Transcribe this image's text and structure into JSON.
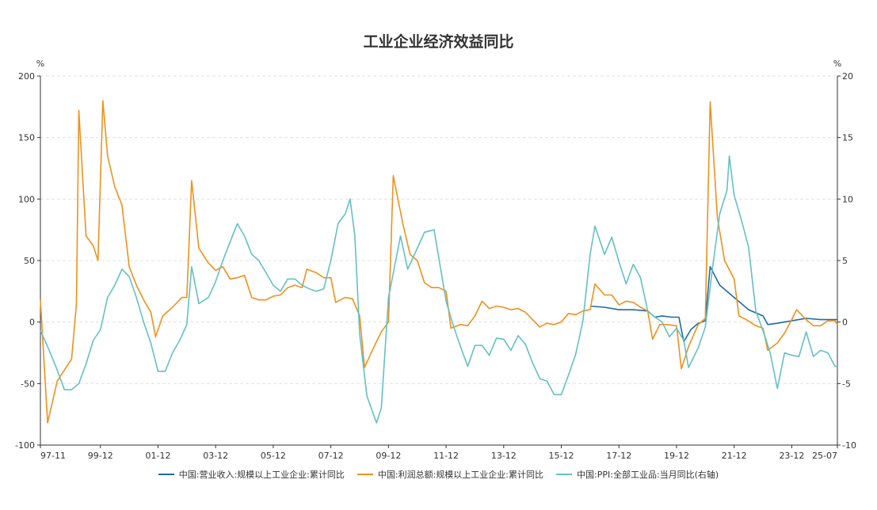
{
  "chart_data": {
    "type": "line",
    "title": "工业企业经济效益同比",
    "y_left": {
      "unit": "%",
      "lim": [
        -100,
        200
      ],
      "ticks": [
        -100,
        -50,
        0,
        50,
        100,
        150,
        200
      ]
    },
    "y_right": {
      "unit": "%",
      "lim": [
        -10,
        20
      ],
      "ticks": [
        -10,
        -5,
        0,
        5,
        10,
        15,
        20
      ]
    },
    "x_range": [
      "1997-11",
      "2025-07"
    ],
    "x_tick_labels": [
      "97-11",
      "99-12",
      "01-12",
      "03-12",
      "05-12",
      "07-12",
      "09-12",
      "11-12",
      "13-12",
      "15-12",
      "17-12",
      "19-12",
      "21-12",
      "23-12",
      "25-07"
    ],
    "grid": "horizontal-dashed",
    "legend_position": "bottom",
    "series": [
      {
        "name": "中国:营业收入:规模以上工业企业:累计同比",
        "axis": "left",
        "color": "#1f6aa5",
        "points": [
          [
            "2016-12",
            13
          ],
          [
            "2017-06",
            12
          ],
          [
            "2017-12",
            10
          ],
          [
            "2018-06",
            10
          ],
          [
            "2018-12",
            9
          ],
          [
            "2019-03",
            4
          ],
          [
            "2019-06",
            5
          ],
          [
            "2019-10",
            4
          ],
          [
            "2020-01",
            4
          ],
          [
            "2020-03",
            -16
          ],
          [
            "2020-06",
            -6
          ],
          [
            "2020-09",
            -1
          ],
          [
            "2020-12",
            1
          ],
          [
            "2021-02",
            45
          ],
          [
            "2021-06",
            30
          ],
          [
            "2021-12",
            20
          ],
          [
            "2022-06",
            10
          ],
          [
            "2022-12",
            5
          ],
          [
            "2023-02",
            -2
          ],
          [
            "2023-06",
            -1
          ],
          [
            "2023-12",
            1
          ],
          [
            "2024-06",
            3
          ],
          [
            "2024-12",
            2
          ],
          [
            "2025-07",
            2
          ]
        ]
      },
      {
        "name": "中国:利润总额:规模以上工业企业:累计同比",
        "axis": "left",
        "color": "#f0901e",
        "points": [
          [
            "1997-11",
            18
          ],
          [
            "1998-02",
            -82
          ],
          [
            "1998-06",
            -48
          ],
          [
            "1998-12",
            -30
          ],
          [
            "1999-02",
            15
          ],
          [
            "1999-03",
            172
          ],
          [
            "1999-06",
            70
          ],
          [
            "1999-09",
            62
          ],
          [
            "1999-11",
            50
          ],
          [
            "2000-01",
            180
          ],
          [
            "2000-03",
            135
          ],
          [
            "2000-06",
            110
          ],
          [
            "2000-09",
            95
          ],
          [
            "2000-12",
            45
          ],
          [
            "2001-03",
            30
          ],
          [
            "2001-06",
            18
          ],
          [
            "2001-09",
            8
          ],
          [
            "2001-11",
            -12
          ],
          [
            "2002-02",
            5
          ],
          [
            "2002-06",
            12
          ],
          [
            "2002-10",
            20
          ],
          [
            "2002-12",
            20
          ],
          [
            "2003-02",
            115
          ],
          [
            "2003-05",
            60
          ],
          [
            "2003-09",
            48
          ],
          [
            "2003-12",
            42
          ],
          [
            "2004-03",
            45
          ],
          [
            "2004-06",
            35
          ],
          [
            "2004-09",
            36
          ],
          [
            "2004-12",
            38
          ],
          [
            "2005-03",
            20
          ],
          [
            "2005-06",
            18
          ],
          [
            "2005-09",
            18
          ],
          [
            "2005-12",
            21
          ],
          [
            "2006-03",
            22
          ],
          [
            "2006-06",
            28
          ],
          [
            "2006-09",
            30
          ],
          [
            "2006-12",
            28
          ],
          [
            "2007-02",
            43
          ],
          [
            "2007-06",
            40
          ],
          [
            "2007-09",
            36
          ],
          [
            "2007-12",
            36
          ],
          [
            "2008-02",
            16
          ],
          [
            "2008-06",
            20
          ],
          [
            "2008-09",
            19
          ],
          [
            "2008-12",
            5
          ],
          [
            "2009-02",
            -37
          ],
          [
            "2009-06",
            -20
          ],
          [
            "2009-09",
            -8
          ],
          [
            "2009-12",
            0
          ],
          [
            "2010-02",
            119
          ],
          [
            "2010-06",
            80
          ],
          [
            "2010-09",
            55
          ],
          [
            "2010-12",
            50
          ],
          [
            "2011-03",
            32
          ],
          [
            "2011-06",
            28
          ],
          [
            "2011-09",
            28
          ],
          [
            "2011-12",
            25
          ],
          [
            "2012-02",
            -5
          ],
          [
            "2012-06",
            -2
          ],
          [
            "2012-09",
            -3
          ],
          [
            "2012-12",
            5
          ],
          [
            "2013-03",
            17
          ],
          [
            "2013-06",
            11
          ],
          [
            "2013-09",
            13
          ],
          [
            "2013-12",
            12
          ],
          [
            "2014-03",
            10
          ],
          [
            "2014-06",
            11
          ],
          [
            "2014-09",
            8
          ],
          [
            "2014-12",
            2
          ],
          [
            "2015-03",
            -4
          ],
          [
            "2015-06",
            -1
          ],
          [
            "2015-09",
            -2
          ],
          [
            "2015-12",
            0
          ],
          [
            "2016-03",
            7
          ],
          [
            "2016-06",
            6
          ],
          [
            "2016-09",
            9
          ],
          [
            "2016-12",
            10
          ],
          [
            "2017-02",
            31
          ],
          [
            "2017-06",
            22
          ],
          [
            "2017-09",
            22
          ],
          [
            "2017-12",
            14
          ],
          [
            "2018-03",
            17
          ],
          [
            "2018-06",
            16
          ],
          [
            "2018-09",
            12
          ],
          [
            "2018-12",
            9
          ],
          [
            "2019-02",
            -14
          ],
          [
            "2019-05",
            -2
          ],
          [
            "2019-08",
            -2
          ],
          [
            "2019-12",
            -3
          ],
          [
            "2020-02",
            -38
          ],
          [
            "2020-05",
            -20
          ],
          [
            "2020-09",
            -2
          ],
          [
            "2020-12",
            3
          ],
          [
            "2021-02",
            179
          ],
          [
            "2021-05",
            85
          ],
          [
            "2021-08",
            50
          ],
          [
            "2021-12",
            35
          ],
          [
            "2022-02",
            5
          ],
          [
            "2022-05",
            2
          ],
          [
            "2022-09",
            -3
          ],
          [
            "2022-12",
            -5
          ],
          [
            "2023-02",
            -23
          ],
          [
            "2023-06",
            -17
          ],
          [
            "2023-09",
            -9
          ],
          [
            "2023-12",
            2
          ],
          [
            "2024-02",
            10
          ],
          [
            "2024-06",
            2
          ],
          [
            "2024-09",
            -3
          ],
          [
            "2024-12",
            -3
          ],
          [
            "2025-03",
            1
          ],
          [
            "2025-06",
            1
          ],
          [
            "2025-07",
            -2
          ]
        ]
      },
      {
        "name": "中国:PPI:全部工业品:当月同比(右轴)",
        "axis": "right",
        "color": "#64c0c4",
        "points": [
          [
            "1997-11",
            -0.7
          ],
          [
            "1998-02",
            -2
          ],
          [
            "1998-06",
            -3.9
          ],
          [
            "1998-09",
            -5.5
          ],
          [
            "1998-12",
            -5.5
          ],
          [
            "1999-03",
            -5
          ],
          [
            "1999-06",
            -3.4
          ],
          [
            "1999-09",
            -1.5
          ],
          [
            "1999-12",
            -0.6
          ],
          [
            "2000-03",
            2
          ],
          [
            "2000-06",
            3
          ],
          [
            "2000-09",
            4.3
          ],
          [
            "2000-12",
            3.7
          ],
          [
            "2001-03",
            2
          ],
          [
            "2001-06",
            0
          ],
          [
            "2001-09",
            -1.7
          ],
          [
            "2001-12",
            -4
          ],
          [
            "2002-03",
            -4
          ],
          [
            "2002-06",
            -2.5
          ],
          [
            "2002-09",
            -1.5
          ],
          [
            "2002-12",
            -0.2
          ],
          [
            "2003-02",
            4.5
          ],
          [
            "2003-05",
            1.5
          ],
          [
            "2003-09",
            2
          ],
          [
            "2003-12",
            3.3
          ],
          [
            "2004-03",
            5
          ],
          [
            "2004-06",
            6.5
          ],
          [
            "2004-09",
            8
          ],
          [
            "2004-12",
            7
          ],
          [
            "2005-03",
            5.5
          ],
          [
            "2005-06",
            5
          ],
          [
            "2005-09",
            4
          ],
          [
            "2005-12",
            3
          ],
          [
            "2006-03",
            2.5
          ],
          [
            "2006-06",
            3.5
          ],
          [
            "2006-09",
            3.5
          ],
          [
            "2006-12",
            3
          ],
          [
            "2007-03",
            2.7
          ],
          [
            "2007-06",
            2.5
          ],
          [
            "2007-09",
            2.7
          ],
          [
            "2007-12",
            5
          ],
          [
            "2008-03",
            8
          ],
          [
            "2008-06",
            8.8
          ],
          [
            "2008-08",
            10
          ],
          [
            "2008-10",
            7
          ],
          [
            "2008-12",
            -1
          ],
          [
            "2009-03",
            -6
          ],
          [
            "2009-07",
            -8.2
          ],
          [
            "2009-09",
            -7
          ],
          [
            "2009-12",
            2
          ],
          [
            "2010-03",
            5
          ],
          [
            "2010-05",
            7
          ],
          [
            "2010-08",
            4.3
          ],
          [
            "2010-12",
            6
          ],
          [
            "2011-03",
            7.3
          ],
          [
            "2011-07",
            7.5
          ],
          [
            "2011-12",
            1.7
          ],
          [
            "2012-03",
            -0.3
          ],
          [
            "2012-06",
            -2
          ],
          [
            "2012-09",
            -3.6
          ],
          [
            "2012-12",
            -1.9
          ],
          [
            "2013-03",
            -1.9
          ],
          [
            "2013-06",
            -2.7
          ],
          [
            "2013-09",
            -1.3
          ],
          [
            "2013-12",
            -1.4
          ],
          [
            "2014-03",
            -2.3
          ],
          [
            "2014-06",
            -1.1
          ],
          [
            "2014-09",
            -1.8
          ],
          [
            "2014-12",
            -3.3
          ],
          [
            "2015-03",
            -4.6
          ],
          [
            "2015-06",
            -4.8
          ],
          [
            "2015-09",
            -5.9
          ],
          [
            "2015-12",
            -5.9
          ],
          [
            "2016-03",
            -4.3
          ],
          [
            "2016-06",
            -2.6
          ],
          [
            "2016-09",
            0.1
          ],
          [
            "2016-12",
            5.5
          ],
          [
            "2017-02",
            7.8
          ],
          [
            "2017-06",
            5.5
          ],
          [
            "2017-09",
            6.9
          ],
          [
            "2017-12",
            4.9
          ],
          [
            "2018-03",
            3.1
          ],
          [
            "2018-06",
            4.7
          ],
          [
            "2018-09",
            3.6
          ],
          [
            "2018-12",
            0.9
          ],
          [
            "2019-03",
            0.4
          ],
          [
            "2019-06",
            0
          ],
          [
            "2019-09",
            -1.2
          ],
          [
            "2019-12",
            -0.5
          ],
          [
            "2020-03",
            -1.5
          ],
          [
            "2020-05",
            -3.7
          ],
          [
            "2020-09",
            -2.1
          ],
          [
            "2020-12",
            -0.4
          ],
          [
            "2021-03",
            4.4
          ],
          [
            "2021-06",
            8.8
          ],
          [
            "2021-09",
            10.7
          ],
          [
            "2021-10",
            13.5
          ],
          [
            "2021-12",
            10.3
          ],
          [
            "2022-03",
            8.3
          ],
          [
            "2022-06",
            6.1
          ],
          [
            "2022-09",
            0.9
          ],
          [
            "2022-12",
            -0.7
          ],
          [
            "2023-03",
            -2.5
          ],
          [
            "2023-06",
            -5.4
          ],
          [
            "2023-09",
            -2.5
          ],
          [
            "2023-12",
            -2.7
          ],
          [
            "2024-03",
            -2.8
          ],
          [
            "2024-06",
            -0.8
          ],
          [
            "2024-09",
            -2.8
          ],
          [
            "2024-12",
            -2.3
          ],
          [
            "2025-03",
            -2.5
          ],
          [
            "2025-06",
            -3.6
          ],
          [
            "2025-07",
            -3.6
          ]
        ]
      }
    ]
  }
}
